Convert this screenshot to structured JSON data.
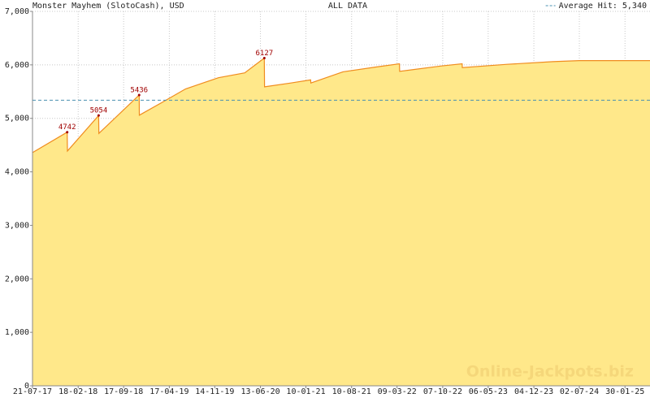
{
  "chart_data": {
    "type": "area",
    "title": "Monster Mayhem (SlotoCash), USD",
    "subtitle": "ALL DATA",
    "watermark": "Online-Jackpots.biz",
    "x": [
      "2017-07-21",
      "2017-12-29",
      "2017-12-30",
      "2018-05-24",
      "2018-05-25",
      "2018-11-28",
      "2018-11-29",
      "2019-03-15",
      "2019-07-01",
      "2019-12-01",
      "2020-04-01",
      "2020-07-01",
      "2020-07-02",
      "2020-11-01",
      "2021-02-01",
      "2021-02-02",
      "2021-07-01",
      "2021-12-01",
      "2022-03-20",
      "2022-03-21",
      "2022-10-01",
      "2023-01-05",
      "2023-01-06",
      "2023-08-01",
      "2024-03-01",
      "2024-07-01",
      "2025-05-26"
    ],
    "values": [
      4360,
      4742,
      4390,
      5054,
      4720,
      5436,
      5060,
      5300,
      5550,
      5760,
      5850,
      6127,
      5590,
      5660,
      5720,
      5660,
      5870,
      5960,
      6020,
      5880,
      5980,
      6020,
      5950,
      6010,
      6060,
      6080,
      6080
    ],
    "value_labels": [
      null,
      "4742",
      null,
      "5054",
      null,
      "5436",
      null,
      null,
      null,
      null,
      null,
      "6127",
      null,
      null,
      null,
      null,
      null,
      null,
      null,
      null,
      null,
      null,
      null,
      null,
      null,
      null,
      null
    ],
    "color": "#ffe88a",
    "line_color": "#f08c1e",
    "average": {
      "value": 5340,
      "label": "Average Hit: 5,340",
      "color": "#4a90b0"
    },
    "xlim": [
      "2017-07-21",
      "2025-05-26"
    ],
    "xticks": [
      {
        "value": "2017-07-21",
        "label": "21-07-17"
      },
      {
        "value": "2018-02-18",
        "label": "18-02-18"
      },
      {
        "value": "2018-09-17",
        "label": "17-09-18"
      },
      {
        "value": "2019-04-17",
        "label": "17-04-19"
      },
      {
        "value": "2019-11-14",
        "label": "14-11-19"
      },
      {
        "value": "2020-06-13",
        "label": "13-06-20"
      },
      {
        "value": "2021-01-10",
        "label": "10-01-21"
      },
      {
        "value": "2021-08-10",
        "label": "10-08-21"
      },
      {
        "value": "2022-03-09",
        "label": "09-03-22"
      },
      {
        "value": "2022-10-07",
        "label": "07-10-22"
      },
      {
        "value": "2023-05-06",
        "label": "06-05-23"
      },
      {
        "value": "2023-12-04",
        "label": "04-12-23"
      },
      {
        "value": "2024-07-02",
        "label": "02-07-24"
      },
      {
        "value": "2025-01-30",
        "label": "30-01-25"
      }
    ],
    "ylim": [
      0,
      7000
    ],
    "yticks": [
      0,
      {
        "value": 1000,
        "label": "1,000"
      },
      {
        "value": 2000,
        "label": "2,000"
      },
      {
        "value": 3000,
        "label": "3,000"
      },
      {
        "value": 4000,
        "label": "4,000"
      },
      {
        "value": 5000,
        "label": "5,000"
      },
      {
        "value": 6000,
        "label": "6,000"
      },
      {
        "value": 7000,
        "label": "7,000"
      }
    ],
    "grid": true
  }
}
